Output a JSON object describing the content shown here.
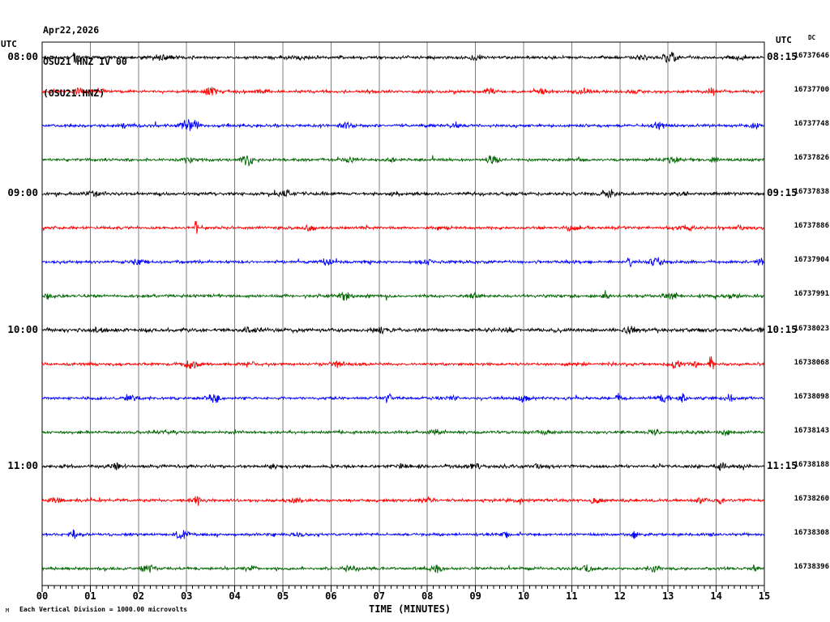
{
  "header": {
    "date": "Apr22,2026",
    "station_line": "OSU21 HNZ IV 00",
    "channel_line": "(OSU21.HNZ)",
    "utc_left": "UTC",
    "utc_right": "UTC",
    "dc_label": "DC"
  },
  "footer": {
    "xlabel": "TIME (MINUTES)",
    "scale_note": "Each Vertical Division = 1000.00 microvolts",
    "corner_mark": "M"
  },
  "chart_data": {
    "type": "line",
    "title": "OSU21 HNZ IV 00 (OSU21.HNZ) helicorder, Apr22,2026",
    "xlabel": "TIME (MINUTES)",
    "x_range_minutes": [
      0,
      15
    ],
    "minutes_per_line": 15,
    "x_tick_labels": [
      "00",
      "01",
      "02",
      "03",
      "04",
      "05",
      "06",
      "07",
      "08",
      "09",
      "10",
      "11",
      "12",
      "13",
      "14",
      "15"
    ],
    "minor_ticks_per_minute": 8,
    "grid": true,
    "grid_color": "#808080",
    "trace_color_cycle": [
      "#000000",
      "#ff0000",
      "#0000ff",
      "#006600"
    ],
    "vertical_division_microvolts": "1000.00",
    "hours": [
      "08:00",
      "09:00",
      "10:00",
      "11:00"
    ],
    "rows": [
      {
        "left_label": "08:00",
        "right_label": "08:15",
        "dc": "16737646",
        "color": "#000000",
        "noise": 1.1,
        "events": [
          [
            0.68,
            7,
            3
          ],
          [
            2.5,
            2.5,
            12
          ],
          [
            5.4,
            2,
            10
          ],
          [
            9.0,
            2,
            8
          ],
          [
            12.45,
            3,
            6
          ],
          [
            13.05,
            6,
            7
          ],
          [
            14.5,
            2.5,
            8
          ]
        ]
      },
      {
        "left_label": "",
        "right_label": "",
        "dc": "16737700",
        "color": "#ff0000",
        "noise": 1.0,
        "events": [
          [
            0.77,
            4,
            5
          ],
          [
            1.2,
            3,
            5
          ],
          [
            3.5,
            5,
            6
          ],
          [
            4.6,
            2.5,
            8
          ],
          [
            9.3,
            4,
            5
          ],
          [
            10.4,
            3,
            9
          ],
          [
            11.2,
            3.5,
            9
          ],
          [
            12.3,
            3,
            7
          ],
          [
            13.9,
            4,
            4
          ]
        ]
      },
      {
        "left_label": "",
        "right_label": "",
        "dc": "16737748",
        "color": "#0000ff",
        "noise": 1.0,
        "events": [
          [
            1.7,
            2.5,
            8
          ],
          [
            3.05,
            6,
            10
          ],
          [
            6.3,
            3,
            8
          ],
          [
            8.6,
            2.5,
            8
          ],
          [
            12.8,
            4,
            7
          ],
          [
            14.8,
            3,
            5
          ]
        ]
      },
      {
        "left_label": "",
        "right_label": "",
        "dc": "16737826",
        "color": "#006600",
        "noise": 1.0,
        "events": [
          [
            3.05,
            3,
            6
          ],
          [
            4.25,
            6,
            6
          ],
          [
            6.4,
            4,
            5
          ],
          [
            7.3,
            3,
            6
          ],
          [
            9.35,
            4.5,
            6
          ],
          [
            13.1,
            4,
            7
          ],
          [
            13.95,
            3,
            5
          ]
        ]
      },
      {
        "left_label": "09:00",
        "right_label": "09:15",
        "dc": "16737838",
        "color": "#000000",
        "noise": 1.15,
        "events": [
          [
            1.1,
            2.5,
            10
          ],
          [
            5.05,
            4,
            7
          ],
          [
            7.35,
            2.5,
            6
          ],
          [
            9.8,
            2,
            8
          ],
          [
            11.75,
            5,
            6
          ],
          [
            13.3,
            2.5,
            6
          ]
        ]
      },
      {
        "left_label": "",
        "right_label": "",
        "dc": "16737886",
        "color": "#ff0000",
        "noise": 1.0,
        "events": [
          [
            3.2,
            8,
            2
          ],
          [
            5.55,
            3.5,
            6
          ],
          [
            8.3,
            2.5,
            8
          ],
          [
            11.0,
            2.5,
            10
          ],
          [
            13.4,
            3,
            8
          ],
          [
            14.5,
            2.5,
            5
          ]
        ]
      },
      {
        "left_label": "",
        "right_label": "",
        "dc": "16737904",
        "color": "#0000ff",
        "noise": 1.0,
        "events": [
          [
            2.0,
            3.5,
            8
          ],
          [
            5.9,
            4,
            6
          ],
          [
            8.0,
            2.5,
            8
          ],
          [
            12.2,
            6,
            2
          ],
          [
            12.75,
            4.5,
            7
          ],
          [
            14.9,
            4,
            4
          ]
        ]
      },
      {
        "left_label": "",
        "right_label": "",
        "dc": "16737991",
        "color": "#006600",
        "noise": 1.05,
        "events": [
          [
            0.15,
            3.5,
            5
          ],
          [
            6.3,
            4,
            7
          ],
          [
            9.0,
            2.5,
            8
          ],
          [
            11.7,
            6,
            2
          ],
          [
            13.05,
            4,
            7
          ],
          [
            14.3,
            2.5,
            6
          ]
        ]
      },
      {
        "left_label": "10:00",
        "right_label": "10:15",
        "dc": "16738023",
        "color": "#000000",
        "noise": 1.3,
        "events": [
          [
            1.2,
            2.5,
            10
          ],
          [
            4.4,
            2.5,
            10
          ],
          [
            7.0,
            3,
            8
          ],
          [
            9.7,
            3,
            6
          ],
          [
            12.2,
            3.5,
            8
          ],
          [
            14.9,
            3.5,
            4
          ]
        ]
      },
      {
        "left_label": "",
        "right_label": "",
        "dc": "16738068",
        "color": "#ff0000",
        "noise": 1.0,
        "events": [
          [
            3.1,
            5.5,
            7
          ],
          [
            4.3,
            2.5,
            8
          ],
          [
            6.15,
            3.5,
            6
          ],
          [
            6.6,
            3,
            5
          ],
          [
            13.15,
            4,
            8
          ],
          [
            13.55,
            3.5,
            5
          ],
          [
            13.9,
            10,
            2
          ]
        ]
      },
      {
        "left_label": "",
        "right_label": "",
        "dc": "16738098",
        "color": "#0000ff",
        "noise": 1.0,
        "events": [
          [
            1.8,
            3,
            8
          ],
          [
            3.55,
            5,
            7
          ],
          [
            7.2,
            3.5,
            6
          ],
          [
            8.5,
            3.5,
            6
          ],
          [
            10.0,
            3.5,
            5
          ],
          [
            11.95,
            7,
            2
          ],
          [
            12.9,
            4.5,
            6
          ],
          [
            13.3,
            4,
            5
          ],
          [
            14.3,
            3,
            6
          ]
        ]
      },
      {
        "left_label": "",
        "right_label": "",
        "dc": "16738143",
        "color": "#006600",
        "noise": 1.0,
        "events": [
          [
            2.5,
            2,
            12
          ],
          [
            8.2,
            3,
            8
          ],
          [
            10.4,
            2.5,
            8
          ],
          [
            12.7,
            4,
            6
          ],
          [
            14.2,
            3,
            5
          ]
        ]
      },
      {
        "left_label": "11:00",
        "right_label": "11:15",
        "dc": "16738188",
        "color": "#000000",
        "noise": 1.1,
        "events": [
          [
            1.5,
            4,
            6
          ],
          [
            4.8,
            3,
            6
          ],
          [
            7.5,
            2.5,
            8
          ],
          [
            9.0,
            3,
            7
          ],
          [
            10.3,
            2.5,
            8
          ],
          [
            14.1,
            5,
            5
          ]
        ]
      },
      {
        "left_label": "",
        "right_label": "",
        "dc": "16738260",
        "color": "#ff0000",
        "noise": 1.05,
        "events": [
          [
            0.3,
            3,
            8
          ],
          [
            3.2,
            5,
            6
          ],
          [
            5.3,
            2.5,
            8
          ],
          [
            8.0,
            2.5,
            10
          ],
          [
            9.9,
            2.5,
            6
          ],
          [
            11.5,
            3.5,
            6
          ],
          [
            13.7,
            3.5,
            6
          ],
          [
            14.1,
            3,
            5
          ]
        ]
      },
      {
        "left_label": "",
        "right_label": "",
        "dc": "16738308",
        "color": "#0000ff",
        "noise": 1.0,
        "events": [
          [
            0.65,
            7,
            3
          ],
          [
            2.9,
            5,
            7
          ],
          [
            5.3,
            2.5,
            8
          ],
          [
            9.6,
            3.5,
            6
          ],
          [
            12.3,
            5,
            3
          ],
          [
            13.9,
            3,
            5
          ]
        ]
      },
      {
        "left_label": "",
        "right_label": "",
        "dc": "16738396",
        "color": "#006600",
        "noise": 1.0,
        "events": [
          [
            2.2,
            5,
            7
          ],
          [
            4.3,
            2.5,
            8
          ],
          [
            6.4,
            2.5,
            8
          ],
          [
            8.2,
            3.5,
            6
          ],
          [
            11.3,
            3.5,
            7
          ],
          [
            12.7,
            4,
            6
          ],
          [
            14.8,
            3,
            4
          ]
        ]
      }
    ]
  }
}
